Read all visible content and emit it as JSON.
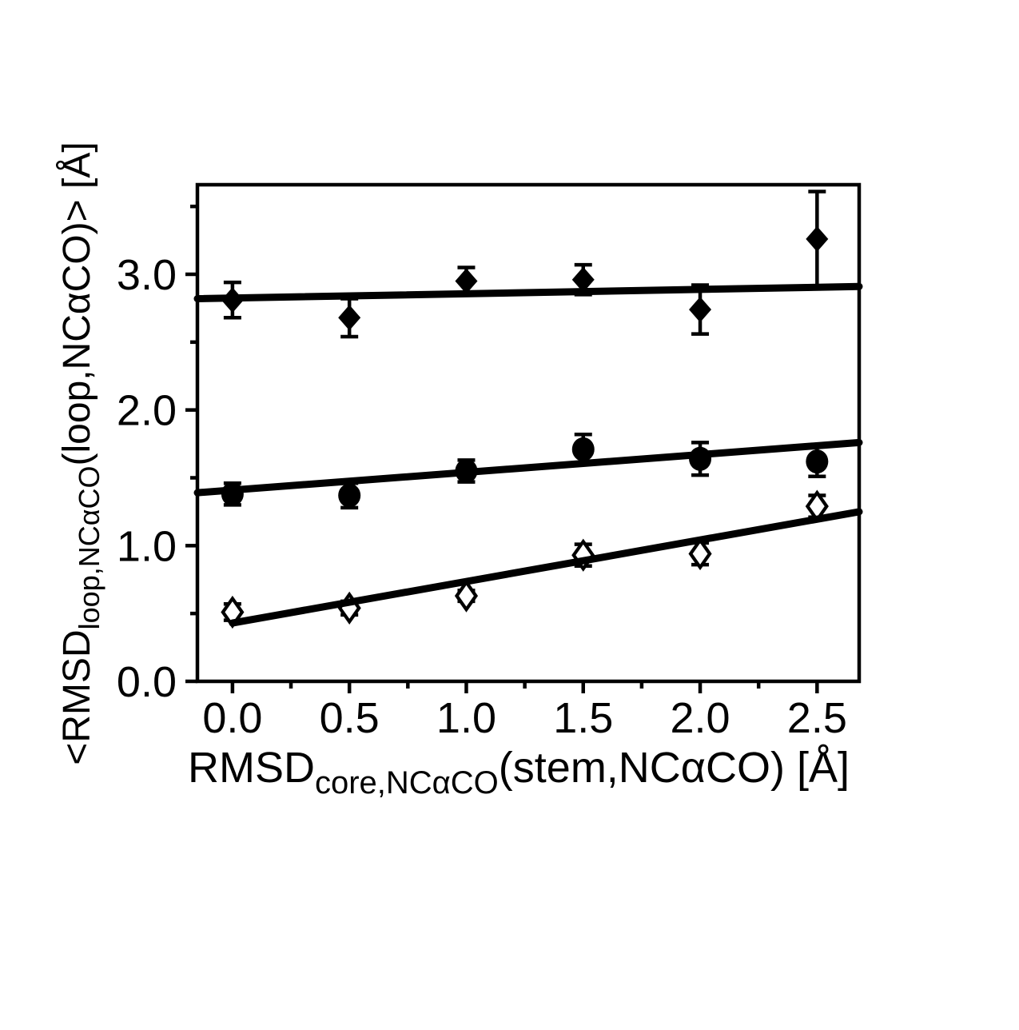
{
  "figure": {
    "background": "#ffffff",
    "ink": "#000000",
    "title": ""
  },
  "chart_data": {
    "type": "scatter",
    "title": "",
    "xlabel": "RMSD_core,NCαCO(stem,NCαCO) [Å]",
    "ylabel": "<RMSD_loop,NCαCO(loop,NCαCO)> [Å]",
    "xlabel_runs": [
      {
        "t": "RMSD",
        "sub": false
      },
      {
        "t": "core,NCαCO",
        "sub": true
      },
      {
        "t": "(stem,NCαCO) [Å]",
        "sub": false
      }
    ],
    "ylabel_runs": [
      {
        "t": "<RMSD",
        "sub": false
      },
      {
        "t": "loop,NCαCO",
        "sub": true
      },
      {
        "t": "(loop,NCαCO)>  [Å]",
        "sub": false
      }
    ],
    "x_axis": {
      "min": -0.15,
      "max": 2.68,
      "major_ticks": [
        0.0,
        0.5,
        1.0,
        1.5,
        2.0,
        2.5
      ],
      "minor_ticks": [
        0.25,
        0.75,
        1.25,
        1.75,
        2.25
      ],
      "tick_labels": [
        "0.0",
        "0.5",
        "1.0",
        "1.5",
        "2.0",
        "2.5"
      ]
    },
    "y_axis": {
      "min": 0.0,
      "max": 3.66,
      "major_ticks": [
        0.0,
        1.0,
        2.0,
        3.0
      ],
      "minor_ticks": [
        0.5,
        1.5,
        2.5,
        3.5
      ],
      "tick_labels": [
        "0.0",
        "1.0",
        "2.0",
        "3.0"
      ]
    },
    "grid": false,
    "legend": null,
    "series": [
      {
        "name": "filled-diamonds",
        "marker": "diamond-filled",
        "x": [
          0.0,
          0.5,
          1.0,
          1.5,
          2.0,
          2.5
        ],
        "y": [
          2.81,
          2.68,
          2.95,
          2.96,
          2.74,
          3.26
        ],
        "yerr": [
          0.13,
          0.14,
          0.1,
          0.11,
          0.18,
          0.35
        ],
        "fit": {
          "x1": -0.15,
          "y1": 2.82,
          "x2": 2.68,
          "y2": 2.91
        }
      },
      {
        "name": "filled-circles",
        "marker": "circle-filled",
        "x": [
          0.0,
          0.5,
          1.0,
          1.5,
          2.0,
          2.5
        ],
        "y": [
          1.38,
          1.37,
          1.55,
          1.71,
          1.64,
          1.62
        ],
        "yerr": [
          0.08,
          0.09,
          0.08,
          0.11,
          0.12,
          0.11
        ],
        "fit": {
          "x1": -0.15,
          "y1": 1.39,
          "x2": 2.68,
          "y2": 1.76
        }
      },
      {
        "name": "open-diamonds",
        "marker": "diamond-open",
        "x": [
          0.0,
          0.5,
          1.0,
          1.5,
          2.0,
          2.5
        ],
        "y": [
          0.51,
          0.54,
          0.63,
          0.93,
          0.94,
          1.29
        ],
        "yerr": [
          0.06,
          0.05,
          0.04,
          0.08,
          0.08,
          0.08
        ],
        "fit": {
          "x1": 0.0,
          "y1": 0.43,
          "x2": 2.68,
          "y2": 1.25
        }
      }
    ]
  }
}
